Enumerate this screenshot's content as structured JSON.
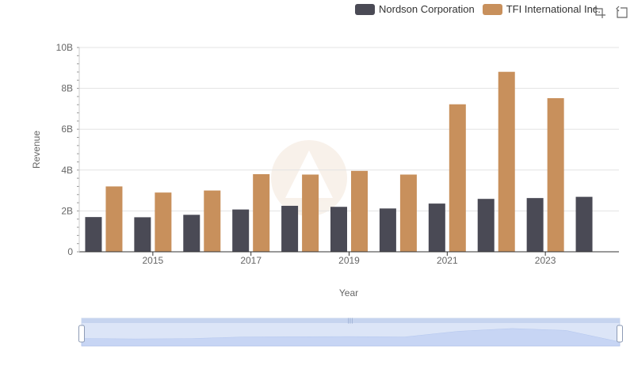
{
  "legend": {
    "items": [
      {
        "label": "Nordson Corporation",
        "color": "#4a4a55"
      },
      {
        "label": "TFI International Inc.",
        "color": "#c8905c"
      }
    ]
  },
  "toolbox": {
    "icons": [
      "zoom-icon",
      "restore-icon"
    ]
  },
  "chart_data": {
    "type": "bar",
    "title": "",
    "xlabel": "Year",
    "ylabel": "Revenue",
    "ylim": [
      0,
      10000000000
    ],
    "yticks": [
      "0",
      "2B",
      "4B",
      "6B",
      "8B",
      "10B"
    ],
    "x_tick_labels": [
      "2015",
      "2017",
      "2019",
      "2021",
      "2023"
    ],
    "categories": [
      "2014",
      "2015",
      "2016",
      "2017",
      "2018",
      "2019",
      "2020",
      "2021",
      "2022",
      "2023",
      "2024"
    ],
    "series": [
      {
        "name": "Nordson Corporation",
        "color": "#4a4a55",
        "values": [
          1700000000,
          1690000000,
          1810000000,
          2070000000,
          2250000000,
          2200000000,
          2120000000,
          2360000000,
          2590000000,
          2630000000,
          2690000000
        ]
      },
      {
        "name": "TFI International Inc.",
        "color": "#c8905c",
        "values": [
          3200000000,
          2900000000,
          3000000000,
          3800000000,
          3780000000,
          3960000000,
          3780000000,
          7220000000,
          8810000000,
          7520000000,
          null
        ]
      }
    ],
    "grid": true,
    "legend_position": "top-right",
    "data_zoom": true
  }
}
